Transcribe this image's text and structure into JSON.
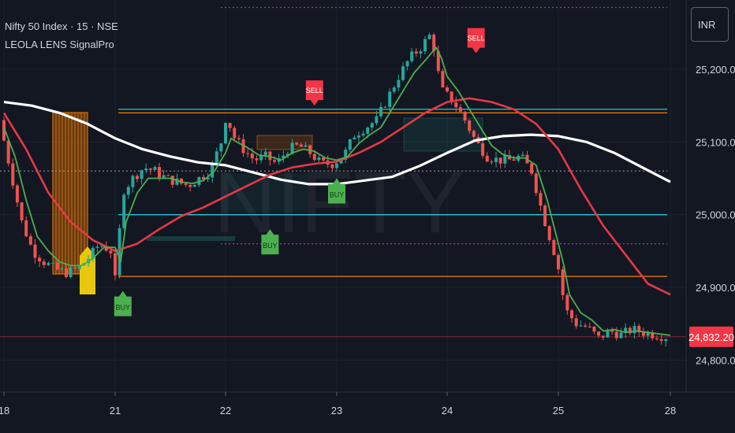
{
  "legend": {
    "symbol": "Nifty 50 Index · 15 · NSE",
    "indicator": "LEOLA LENS SignalPro"
  },
  "currency": "INR",
  "watermark": "NIFTY",
  "colors": {
    "background": "#131722",
    "up": "#26a69a",
    "down": "#ef5350",
    "ema_fast": "#4caf50",
    "ema_mid": "#e53945",
    "ema_slow": "#ffffff",
    "cyan_level": "#26c6da",
    "orange_level": "#f57c00",
    "buy": "#4caf50",
    "sell": "#f23645",
    "price_tag": "#f23645"
  },
  "chart_data": {
    "type": "candlestick",
    "title": "",
    "x_ticks": [
      "18",
      "21",
      "22",
      "23",
      "24",
      "25",
      "28"
    ],
    "y_ticks": [
      "25,200.00",
      "25,100.00",
      "25,000.00",
      "24,900.00",
      "24,800.00"
    ],
    "ylim": [
      24780,
      25300
    ],
    "last_price": "24,832.20",
    "levels": [
      {
        "value": 25145,
        "color": "#26c6da"
      },
      {
        "value": 25140,
        "color": "#f57c00"
      },
      {
        "value": 25000,
        "color": "#26c6da"
      },
      {
        "value": 24915,
        "color": "#f57c00"
      },
      {
        "value": 25285,
        "color": "#e040fb",
        "dashed": true
      },
      {
        "value": 24960,
        "color": "#e040fb",
        "dashed": true
      },
      {
        "value": 25060,
        "color": "#b2b5be",
        "dashed": true
      }
    ],
    "signals": [
      {
        "label": "BUY",
        "type": "buy",
        "day": 1.07,
        "value": 24895
      },
      {
        "label": "BUY",
        "type": "buy",
        "day": 2.4,
        "value": 24980
      },
      {
        "label": "BUY",
        "type": "buy",
        "day": 3.0,
        "value": 25050
      },
      {
        "label": "SELL",
        "type": "sell",
        "day": 2.8,
        "value": 25150
      },
      {
        "label": "SELL",
        "type": "sell",
        "day": 4.26,
        "value": 25222
      }
    ],
    "series": [
      {
        "name": "",
        "key": "price",
        "x": [
          0,
          0.1,
          0.2,
          0.3,
          0.4,
          0.5,
          0.6,
          0.7,
          0.8,
          0.9,
          1.0,
          1.05,
          1.1,
          1.2,
          1.3,
          1.4,
          1.5,
          1.6,
          1.7,
          1.8,
          1.9,
          2.0,
          2.05,
          2.1,
          2.2,
          2.3,
          2.4,
          2.5,
          2.6,
          2.7,
          2.8,
          2.9,
          3.0,
          3.1,
          3.2,
          3.3,
          3.4,
          3.5,
          3.6,
          3.7,
          3.8,
          3.9,
          3.95,
          4.0,
          4.1,
          4.2,
          4.3,
          4.4,
          4.5,
          4.6,
          4.7,
          4.8,
          4.9,
          5.0,
          5.05,
          5.1,
          5.2,
          5.3,
          5.4,
          5.5,
          5.6,
          5.7,
          5.8,
          5.9,
          6.0
        ],
        "values": [
          25130,
          25060,
          24990,
          24950,
          24935,
          24925,
          24920,
          24925,
          24940,
          24960,
          24950,
          24900,
          25030,
          25050,
          25065,
          25060,
          25050,
          25045,
          25040,
          25050,
          25060,
          25100,
          25140,
          25110,
          25090,
          25075,
          25080,
          25070,
          25090,
          25095,
          25085,
          25070,
          25070,
          25080,
          25110,
          25120,
          25130,
          25160,
          25190,
          25215,
          25230,
          25250,
          25200,
          25170,
          25155,
          25130,
          25100,
          25080,
          25075,
          25075,
          25080,
          25060,
          25000,
          24950,
          24920,
          24870,
          24850,
          24845,
          24830,
          24840,
          24835,
          24842,
          24838,
          24835,
          24832
        ]
      },
      {
        "name": "",
        "key": "ema_fast",
        "x": [
          0,
          0.1,
          0.2,
          0.3,
          0.4,
          0.5,
          0.6,
          0.7,
          0.8,
          0.9,
          1.0,
          1.05,
          1.1,
          1.2,
          1.3,
          1.4,
          1.5,
          1.6,
          1.7,
          1.8,
          1.9,
          2.0,
          2.05,
          2.1,
          2.2,
          2.3,
          2.4,
          2.5,
          2.6,
          2.7,
          2.8,
          2.9,
          3.0,
          3.1,
          3.2,
          3.3,
          3.4,
          3.5,
          3.6,
          3.7,
          3.8,
          3.9,
          3.95,
          4.0,
          4.1,
          4.2,
          4.3,
          4.4,
          4.5,
          4.6,
          4.7,
          4.8,
          4.9,
          5.0,
          5.05,
          5.1,
          5.2,
          5.3,
          5.4,
          5.5,
          5.6,
          5.7,
          5.8,
          5.9,
          6.0
        ],
        "values": [
          25120,
          25080,
          25020,
          24970,
          24950,
          24935,
          24930,
          24930,
          24940,
          24955,
          24955,
          24935,
          24990,
          25030,
          25050,
          25050,
          25050,
          25045,
          25043,
          25047,
          25060,
          25085,
          25105,
          25100,
          25092,
          25082,
          25080,
          25075,
          25085,
          25090,
          25087,
          25078,
          25075,
          25080,
          25098,
          25110,
          25120,
          25145,
          25170,
          25195,
          25212,
          25230,
          25215,
          25190,
          25170,
          25145,
          25120,
          25095,
          25083,
          25078,
          25078,
          25068,
          25020,
          24960,
          24930,
          24890,
          24865,
          24855,
          24840,
          24842,
          24838,
          24840,
          24838,
          24836,
          24834
        ]
      },
      {
        "name": "",
        "key": "ema_mid",
        "x": [
          0,
          0.2,
          0.4,
          0.6,
          0.8,
          1.0,
          1.2,
          1.4,
          1.6,
          1.8,
          2.0,
          2.2,
          2.4,
          2.6,
          2.8,
          3.0,
          3.2,
          3.4,
          3.6,
          3.8,
          4.0,
          4.2,
          4.4,
          4.6,
          4.8,
          5.0,
          5.2,
          5.4,
          5.6,
          5.8,
          6.0
        ],
        "values": [
          25140,
          25090,
          25030,
          24990,
          24965,
          24950,
          24960,
          24980,
          24998,
          25010,
          25025,
          25040,
          25055,
          25065,
          25070,
          25073,
          25085,
          25100,
          25120,
          25140,
          25155,
          25160,
          25155,
          25145,
          25125,
          25090,
          25035,
          24985,
          24945,
          24905,
          24890
        ]
      },
      {
        "name": "",
        "key": "ema_slow",
        "x": [
          0,
          0.25,
          0.5,
          0.75,
          1.0,
          1.25,
          1.5,
          1.75,
          2.0,
          2.25,
          2.5,
          2.75,
          3.0,
          3.25,
          3.5,
          3.75,
          4.0,
          4.25,
          4.5,
          4.75,
          5.0,
          5.25,
          5.5,
          5.75,
          6.0
        ],
        "values": [
          25155,
          25150,
          25140,
          25125,
          25105,
          25090,
          25080,
          25072,
          25068,
          25058,
          25048,
          25042,
          25042,
          25047,
          25052,
          25067,
          25085,
          25102,
          25108,
          25110,
          25108,
          25100,
          25085,
          25065,
          25045
        ]
      }
    ]
  }
}
